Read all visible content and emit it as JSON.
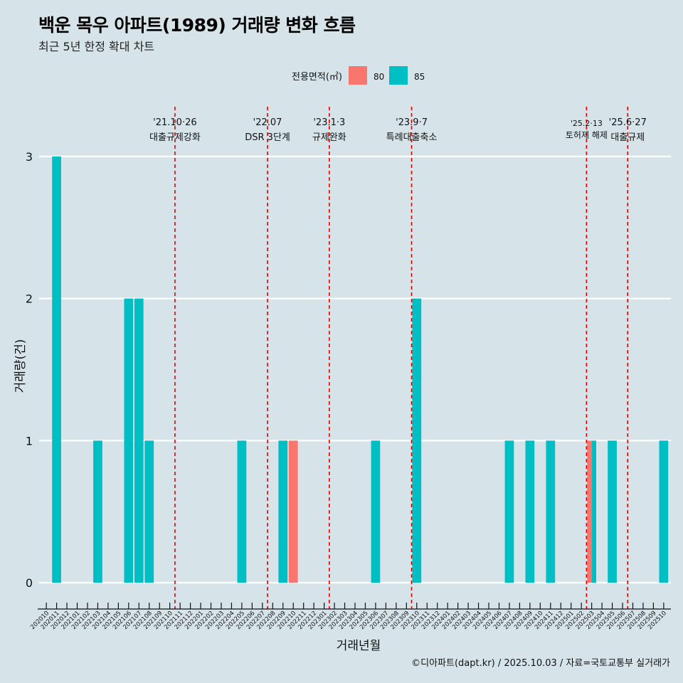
{
  "header": {
    "title": "백운 목우 아파트(1989) 거래량 변화 흐름",
    "subtitle": "최근 5년 한정 확대 차트"
  },
  "caption": "©디아파트(dapt.kr) / 2025.10.03 / 자료=국토교통부 실거래가",
  "colors": {
    "background": "#d6e4ea",
    "s80": "#F8766D",
    "s85": "#00BFC4",
    "policy": "#e00000",
    "grid": "#ffffff"
  },
  "chart_data": {
    "type": "bar",
    "stacked": true,
    "title": "백운 목우 아파트(1989) 거래량 변화 흐름",
    "xlabel": "거래년월",
    "ylabel": "거래량(건)",
    "ylim": [
      -0.12,
      3.35
    ],
    "yticks": [
      0,
      1,
      2,
      3
    ],
    "legend": {
      "title": "전용면적(㎡)",
      "position": "top"
    },
    "categories": [
      "202010",
      "202011",
      "202012",
      "202101",
      "202102",
      "202103",
      "202104",
      "202105",
      "202106",
      "202107",
      "202108",
      "202109",
      "202110",
      "202111",
      "202112",
      "202201",
      "202202",
      "202203",
      "202204",
      "202205",
      "202206",
      "202207",
      "202208",
      "202209",
      "202210",
      "202211",
      "202212",
      "202301",
      "202302",
      "202303",
      "202304",
      "202305",
      "202306",
      "202307",
      "202308",
      "202309",
      "202310",
      "202311",
      "202312",
      "202401",
      "202402",
      "202403",
      "202404",
      "202405",
      "202406",
      "202407",
      "202408",
      "202409",
      "202410",
      "202411",
      "202412",
      "202501",
      "202502",
      "202503",
      "202504",
      "202505",
      "202506",
      "202507",
      "202508",
      "202509",
      "202510"
    ],
    "series": [
      {
        "name": "80",
        "values": [
          0,
          0,
          0,
          0,
          0,
          0,
          0,
          0,
          0,
          0,
          0,
          0,
          0,
          0,
          0,
          0,
          0,
          0,
          0,
          0,
          0,
          0,
          0,
          0,
          1,
          0,
          0,
          0,
          0,
          0,
          0,
          0,
          0,
          0,
          0,
          0,
          0,
          0,
          0,
          0,
          0,
          0,
          0,
          0,
          0,
          0,
          0,
          0,
          0,
          0,
          0,
          0,
          0,
          1,
          0,
          0,
          0,
          0,
          0,
          0,
          0
        ]
      },
      {
        "name": "85",
        "values": [
          0,
          3,
          0,
          0,
          0,
          1,
          0,
          0,
          2,
          2,
          1,
          0,
          0,
          0,
          0,
          0,
          0,
          0,
          0,
          1,
          0,
          0,
          0,
          1,
          0,
          0,
          0,
          0,
          0,
          0,
          0,
          0,
          1,
          0,
          0,
          0,
          2,
          0,
          0,
          0,
          0,
          0,
          0,
          0,
          0,
          1,
          0,
          1,
          0,
          1,
          0,
          0,
          0,
          1,
          0,
          1,
          0,
          0,
          0,
          0,
          1
        ]
      }
    ],
    "annotations": [
      {
        "month": "202110",
        "line1": "'21.10·26",
        "line2": "대출규제강화"
      },
      {
        "month": "202207",
        "line1": "'22.07",
        "line2": "DSR 3단계"
      },
      {
        "month": "202301",
        "line1": "'23.1·3",
        "line2": "규제완화"
      },
      {
        "month": "202309",
        "line1": "'23.9·7",
        "line2": "특례대출축소"
      },
      {
        "month": "202502",
        "line1": "'25.2·13",
        "line2": "토허제 해제"
      },
      {
        "month": "202506",
        "line1": "'25.6·27",
        "line2": "대출규제"
      }
    ]
  }
}
